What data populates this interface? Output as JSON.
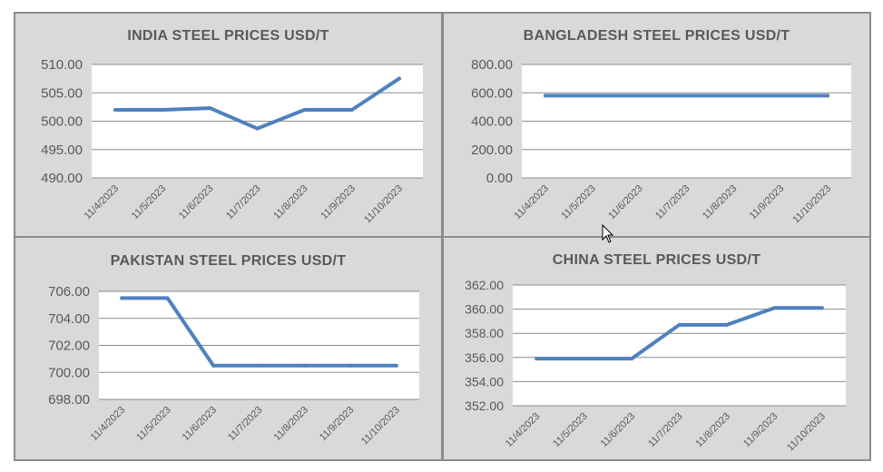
{
  "chart_data": [
    {
      "type": "line",
      "title": "INDIA STEEL PRICES USD/T",
      "categories": [
        "11/4/2023",
        "11/5/2023",
        "11/6/2023",
        "11/7/2023",
        "11/8/2023",
        "11/9/2023",
        "11/10/2023"
      ],
      "values": [
        502.0,
        502.0,
        502.3,
        498.7,
        502.0,
        502.0,
        507.5
      ],
      "ylim": [
        490,
        510
      ],
      "yticks": [
        "490.00",
        "495.00",
        "500.00",
        "505.00",
        "510.00"
      ],
      "grid": true,
      "color": "#4f81bd"
    },
    {
      "type": "line",
      "title": "BANGLADESH STEEL PRICES USD/T",
      "categories": [
        "11/4/2023",
        "11/5/2023",
        "11/6/2023",
        "11/7/2023",
        "11/8/2023",
        "11/9/2023",
        "11/10/2023"
      ],
      "values": [
        580,
        580,
        580,
        580,
        580,
        580,
        580
      ],
      "ylim": [
        0,
        800
      ],
      "yticks": [
        "0.00",
        "200.00",
        "400.00",
        "600.00",
        "800.00"
      ],
      "grid": true,
      "color": "#4f81bd"
    },
    {
      "type": "line",
      "title": "PAKISTAN STEEL PRICES USD/T",
      "categories": [
        "11/4/2023",
        "11/5/2023",
        "11/6/2023",
        "11/7/2023",
        "11/8/2023",
        "11/9/2023",
        "11/10/2023"
      ],
      "values": [
        705.5,
        705.5,
        700.5,
        700.5,
        700.5,
        700.5,
        700.5
      ],
      "ylim": [
        698,
        706
      ],
      "yticks": [
        "698.00",
        "700.00",
        "702.00",
        "704.00",
        "706.00"
      ],
      "grid": true,
      "color": "#4f81bd"
    },
    {
      "type": "line",
      "title": "CHINA STEEL PRICES USD/T",
      "categories": [
        "11/4/2023",
        "11/5/2023",
        "11/6/2023",
        "11/7/2023",
        "11/8/2023",
        "11/9/2023",
        "11/10/2023"
      ],
      "values": [
        355.9,
        355.9,
        355.9,
        358.7,
        358.7,
        360.1,
        360.1
      ],
      "ylim": [
        352,
        362
      ],
      "yticks": [
        "352.00",
        "354.00",
        "356.00",
        "358.00",
        "360.00",
        "362.00"
      ],
      "grid": true,
      "color": "#4f81bd"
    }
  ]
}
